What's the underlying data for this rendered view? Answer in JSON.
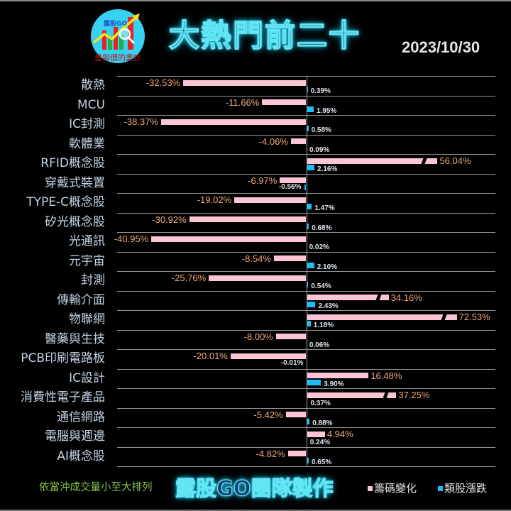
{
  "header": {
    "logo": {
      "brand_text": "露股GO",
      "tagline": "量與價的奧妙"
    },
    "title": "大熱門前二十",
    "date": "2023/10/30"
  },
  "chart_data": {
    "type": "bar",
    "orientation": "horizontal",
    "title": "大熱門前二十",
    "subtitle": "2023/10/30",
    "xlabel": "",
    "ylabel": "",
    "xlim": [
      -50,
      50
    ],
    "grid": true,
    "legend_position": "bottom-right",
    "annotation": "依當沖成交量小至大排列",
    "categories": [
      "散熱",
      "MCU",
      "IC封測",
      "軟體業",
      "RFID概念股",
      "穿戴式裝置",
      "TYPE-C概念股",
      "矽光概念股",
      "光通訊",
      "元宇宙",
      "封測",
      "傳輸介面",
      "物聯網",
      "醫藥與生技",
      "PCB印刷電路板",
      "IC設計",
      "消費性電子產品",
      "通信網路",
      "電腦與週邊",
      "AI概念股"
    ],
    "series": [
      {
        "name": "籌碼變化",
        "color": "#fbc5d3",
        "values": [
          -32.53,
          -11.66,
          -38.37,
          -4.06,
          56.04,
          -6.97,
          -19.02,
          -30.92,
          -40.95,
          -8.54,
          -25.76,
          34.16,
          72.53,
          -8.0,
          -20.01,
          16.48,
          37.25,
          -5.42,
          4.94,
          -4.82
        ],
        "labels": [
          "-32.53%",
          "-11.66%",
          "-38.37%",
          "-4.06%",
          "56.04%",
          "-6.97%",
          "-19.02%",
          "-30.92%",
          "-40.95%",
          "-8.54%",
          "-25.76%",
          "34.16%",
          "72.53%",
          "-8.00%",
          "-20.01%",
          "16.48%",
          "37.25%",
          "-5.42%",
          "4.94%",
          "-4.82%"
        ]
      },
      {
        "name": "類股漲跌",
        "color": "#1dbdf5",
        "values": [
          0.39,
          1.95,
          0.58,
          0.09,
          2.16,
          -0.56,
          1.47,
          0.68,
          0.02,
          2.1,
          0.54,
          2.43,
          1.18,
          0.06,
          -0.01,
          3.9,
          0.37,
          0.88,
          0.24,
          0.65
        ],
        "labels": [
          "0.39%",
          "1.95%",
          "0.58%",
          "0.09%",
          "2.16%",
          "-0.56%",
          "1.47%",
          "0.68%",
          "0.02%",
          "2.10%",
          "0.54%",
          "2.43%",
          "1.18%",
          "0.06%",
          "-0.01%",
          "3.90%",
          "0.37%",
          "0.88%",
          "0.24%",
          "0.65%"
        ]
      }
    ],
    "axis_breaks": [
      {
        "series": 0,
        "index": 4,
        "display_value": 34.7,
        "break_at": 30.6
      },
      {
        "series": 0,
        "index": 11,
        "display_value": 21.8,
        "break_at": 18.6
      },
      {
        "series": 0,
        "index": 12,
        "display_value": 39.8,
        "break_at": 36.0
      },
      {
        "series": 0,
        "index": 16,
        "display_value": 23.8,
        "break_at": 20.5
      }
    ]
  },
  "footer": {
    "sort_note": "依當沖成交量小至大排列",
    "credit": "露股GO團隊製作",
    "legend": [
      {
        "label": "籌碼變化",
        "color": "#fbc5d3"
      },
      {
        "label": "類股漲跌",
        "color": "#1dbdf5"
      }
    ]
  }
}
